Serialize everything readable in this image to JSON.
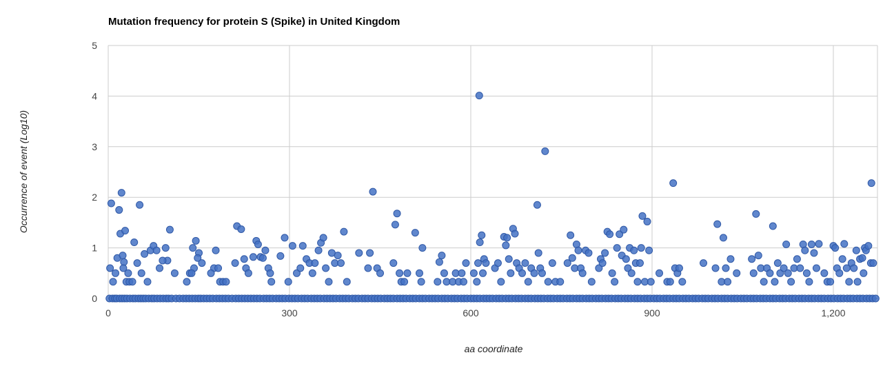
{
  "chart_data": {
    "type": "scatter",
    "title": "Mutation frequency for protein S (Spike) in United Kingdom",
    "xlabel": "aa coordinate",
    "ylabel": "Occurrence of event (Log10)",
    "xlim": [
      0,
      1273
    ],
    "ylim": [
      0,
      5
    ],
    "x_ticks": [
      "0",
      "300",
      "600",
      "900",
      "1,200"
    ],
    "y_ticks": [
      "0",
      "1",
      "2",
      "3",
      "4",
      "5"
    ],
    "grid": true,
    "legend": "none",
    "color": "#4472c4",
    "points": [
      [
        5,
        1.88
      ],
      [
        22,
        2.09
      ],
      [
        18,
        1.75
      ],
      [
        52,
        1.85
      ],
      [
        20,
        1.28
      ],
      [
        28,
        1.34
      ],
      [
        43,
        1.11
      ],
      [
        15,
        0.8
      ],
      [
        24,
        0.85
      ],
      [
        26,
        0.72
      ],
      [
        25,
        0.6
      ],
      [
        60,
        0.88
      ],
      [
        70,
        0.95
      ],
      [
        75,
        1.04
      ],
      [
        80,
        0.95
      ],
      [
        95,
        1.0
      ],
      [
        102,
        1.36
      ],
      [
        98,
        0.75
      ],
      [
        90,
        0.75
      ],
      [
        85,
        0.6
      ],
      [
        48,
        0.7
      ],
      [
        55,
        0.5
      ],
      [
        65,
        0.33
      ],
      [
        12,
        0.5
      ],
      [
        30,
        0.33
      ],
      [
        35,
        0.33
      ],
      [
        40,
        0.33
      ],
      [
        8,
        0.33
      ],
      [
        3,
        0.6
      ],
      [
        33,
        0.5
      ],
      [
        110,
        0.5
      ],
      [
        130,
        0.33
      ],
      [
        135,
        0.5
      ],
      [
        140,
        1.0
      ],
      [
        145,
        1.14
      ],
      [
        150,
        0.9
      ],
      [
        148,
        0.8
      ],
      [
        155,
        0.7
      ],
      [
        142,
        0.6
      ],
      [
        138,
        0.5
      ],
      [
        175,
        0.6
      ],
      [
        178,
        0.95
      ],
      [
        182,
        0.6
      ],
      [
        170,
        0.5
      ],
      [
        185,
        0.33
      ],
      [
        190,
        0.33
      ],
      [
        195,
        0.33
      ],
      [
        210,
        0.7
      ],
      [
        213,
        1.43
      ],
      [
        220,
        1.37
      ],
      [
        225,
        0.78
      ],
      [
        228,
        0.6
      ],
      [
        232,
        0.5
      ],
      [
        240,
        0.82
      ],
      [
        245,
        1.14
      ],
      [
        248,
        1.07
      ],
      [
        252,
        0.82
      ],
      [
        256,
        0.8
      ],
      [
        260,
        0.95
      ],
      [
        265,
        0.6
      ],
      [
        268,
        0.5
      ],
      [
        270,
        0.33
      ],
      [
        285,
        0.84
      ],
      [
        292,
        1.2
      ],
      [
        298,
        0.33
      ],
      [
        305,
        1.04
      ],
      [
        312,
        0.5
      ],
      [
        318,
        0.6
      ],
      [
        322,
        1.04
      ],
      [
        328,
        0.78
      ],
      [
        333,
        0.7
      ],
      [
        338,
        0.5
      ],
      [
        342,
        0.7
      ],
      [
        348,
        0.95
      ],
      [
        352,
        1.1
      ],
      [
        356,
        1.2
      ],
      [
        360,
        0.6
      ],
      [
        365,
        0.33
      ],
      [
        370,
        0.9
      ],
      [
        375,
        0.7
      ],
      [
        380,
        0.85
      ],
      [
        385,
        0.7
      ],
      [
        390,
        1.32
      ],
      [
        395,
        0.33
      ],
      [
        415,
        0.9
      ],
      [
        430,
        0.6
      ],
      [
        433,
        0.9
      ],
      [
        438,
        2.11
      ],
      [
        445,
        0.6
      ],
      [
        450,
        0.5
      ],
      [
        472,
        0.7
      ],
      [
        475,
        1.46
      ],
      [
        478,
        1.68
      ],
      [
        482,
        0.5
      ],
      [
        485,
        0.33
      ],
      [
        490,
        0.33
      ],
      [
        495,
        0.5
      ],
      [
        508,
        1.3
      ],
      [
        515,
        0.5
      ],
      [
        520,
        1.0
      ],
      [
        518,
        0.33
      ],
      [
        545,
        0.33
      ],
      [
        548,
        0.72
      ],
      [
        552,
        0.85
      ],
      [
        556,
        0.5
      ],
      [
        560,
        0.33
      ],
      [
        570,
        0.33
      ],
      [
        575,
        0.5
      ],
      [
        580,
        0.33
      ],
      [
        585,
        0.5
      ],
      [
        588,
        0.33
      ],
      [
        592,
        0.7
      ],
      [
        605,
        0.5
      ],
      [
        610,
        0.33
      ],
      [
        614,
        4.01
      ],
      [
        615,
        1.11
      ],
      [
        618,
        1.25
      ],
      [
        622,
        0.78
      ],
      [
        625,
        0.7
      ],
      [
        620,
        0.5
      ],
      [
        612,
        0.7
      ],
      [
        640,
        0.6
      ],
      [
        645,
        0.7
      ],
      [
        650,
        0.33
      ],
      [
        655,
        1.22
      ],
      [
        658,
        1.05
      ],
      [
        660,
        1.2
      ],
      [
        663,
        0.78
      ],
      [
        666,
        0.5
      ],
      [
        670,
        1.38
      ],
      [
        673,
        1.28
      ],
      [
        676,
        0.7
      ],
      [
        680,
        0.6
      ],
      [
        685,
        0.5
      ],
      [
        690,
        0.7
      ],
      [
        695,
        0.33
      ],
      [
        700,
        0.6
      ],
      [
        705,
        0.5
      ],
      [
        710,
        1.85
      ],
      [
        712,
        0.9
      ],
      [
        715,
        0.6
      ],
      [
        718,
        0.5
      ],
      [
        723,
        2.91
      ],
      [
        728,
        0.33
      ],
      [
        735,
        0.7
      ],
      [
        740,
        0.33
      ],
      [
        748,
        0.33
      ],
      [
        760,
        0.7
      ],
      [
        765,
        1.25
      ],
      [
        768,
        0.8
      ],
      [
        772,
        0.6
      ],
      [
        775,
        1.07
      ],
      [
        778,
        0.95
      ],
      [
        782,
        0.6
      ],
      [
        785,
        0.5
      ],
      [
        790,
        0.95
      ],
      [
        795,
        0.9
      ],
      [
        800,
        0.33
      ],
      [
        812,
        0.6
      ],
      [
        815,
        0.78
      ],
      [
        818,
        0.7
      ],
      [
        822,
        0.9
      ],
      [
        826,
        1.32
      ],
      [
        830,
        1.27
      ],
      [
        834,
        0.5
      ],
      [
        838,
        0.33
      ],
      [
        842,
        1.0
      ],
      [
        846,
        1.27
      ],
      [
        850,
        0.85
      ],
      [
        853,
        1.36
      ],
      [
        857,
        0.78
      ],
      [
        860,
        0.6
      ],
      [
        863,
        1.0
      ],
      [
        866,
        0.5
      ],
      [
        870,
        0.95
      ],
      [
        873,
        0.7
      ],
      [
        876,
        0.33
      ],
      [
        880,
        0.7
      ],
      [
        882,
        1.0
      ],
      [
        884,
        1.63
      ],
      [
        888,
        0.33
      ],
      [
        892,
        1.52
      ],
      [
        895,
        0.95
      ],
      [
        898,
        0.33
      ],
      [
        912,
        0.5
      ],
      [
        925,
        0.33
      ],
      [
        930,
        0.33
      ],
      [
        935,
        2.28
      ],
      [
        938,
        0.6
      ],
      [
        942,
        0.5
      ],
      [
        945,
        0.6
      ],
      [
        950,
        0.33
      ],
      [
        985,
        0.7
      ],
      [
        1005,
        0.6
      ],
      [
        1008,
        1.47
      ],
      [
        1015,
        0.33
      ],
      [
        1018,
        1.2
      ],
      [
        1022,
        0.6
      ],
      [
        1025,
        0.33
      ],
      [
        1030,
        0.78
      ],
      [
        1040,
        0.5
      ],
      [
        1065,
        0.78
      ],
      [
        1068,
        0.5
      ],
      [
        1072,
        1.67
      ],
      [
        1076,
        0.85
      ],
      [
        1080,
        0.6
      ],
      [
        1085,
        0.33
      ],
      [
        1090,
        0.6
      ],
      [
        1095,
        0.5
      ],
      [
        1100,
        1.43
      ],
      [
        1103,
        0.33
      ],
      [
        1108,
        0.7
      ],
      [
        1112,
        0.5
      ],
      [
        1118,
        0.6
      ],
      [
        1122,
        1.07
      ],
      [
        1125,
        0.5
      ],
      [
        1130,
        0.33
      ],
      [
        1135,
        0.6
      ],
      [
        1140,
        0.78
      ],
      [
        1145,
        0.6
      ],
      [
        1150,
        1.07
      ],
      [
        1153,
        0.95
      ],
      [
        1156,
        0.5
      ],
      [
        1160,
        0.33
      ],
      [
        1164,
        1.07
      ],
      [
        1168,
        0.9
      ],
      [
        1172,
        0.6
      ],
      [
        1176,
        1.08
      ],
      [
        1185,
        0.5
      ],
      [
        1190,
        0.33
      ],
      [
        1195,
        0.33
      ],
      [
        1200,
        1.04
      ],
      [
        1203,
        1.0
      ],
      [
        1206,
        0.6
      ],
      [
        1210,
        0.5
      ],
      [
        1215,
        0.78
      ],
      [
        1218,
        1.08
      ],
      [
        1222,
        0.6
      ],
      [
        1226,
        0.33
      ],
      [
        1230,
        0.7
      ],
      [
        1234,
        0.6
      ],
      [
        1238,
        0.95
      ],
      [
        1240,
        0.33
      ],
      [
        1244,
        0.78
      ],
      [
        1248,
        0.8
      ],
      [
        1250,
        0.5
      ],
      [
        1252,
        1.0
      ],
      [
        1254,
        0.95
      ],
      [
        1258,
        1.04
      ],
      [
        1262,
        0.7
      ],
      [
        1263,
        2.28
      ],
      [
        1266,
        0.7
      ]
    ],
    "zero_baseline_x": [
      2,
      7,
      11,
      14,
      19,
      23,
      27,
      31,
      36,
      41,
      45,
      50,
      54,
      58,
      62,
      67,
      72,
      76,
      81,
      86,
      91,
      96,
      100,
      105,
      112,
      118,
      124,
      129,
      134,
      139,
      144,
      149,
      153,
      158,
      163,
      168,
      173,
      179,
      184,
      189,
      194,
      199,
      205,
      211,
      216,
      221,
      226,
      231,
      236,
      241,
      246,
      251,
      257,
      262,
      267,
      272,
      278,
      283,
      288,
      293,
      299,
      304,
      309,
      314,
      320,
      325,
      330,
      336,
      341,
      346,
      351,
      357,
      362,
      367,
      372,
      377,
      383,
      388,
      393,
      398,
      404,
      409,
      414,
      420,
      425,
      430,
      436,
      441,
      446,
      451,
      457,
      462,
      467,
      472,
      478,
      483,
      488,
      493,
      499,
      504,
      509,
      515,
      520,
      525,
      531,
      536,
      541,
      546,
      552,
      557,
      562,
      568,
      573,
      578,
      584,
      589,
      594,
      600,
      605,
      610,
      615,
      621,
      626,
      631,
      636,
      642,
      647,
      652,
      658,
      663,
      668,
      674,
      679,
      684,
      690,
      695,
      700,
      706,
      711,
      716,
      721,
      727,
      732,
      737,
      743,
      748,
      753,
      759,
      764,
      769,
      775,
      780,
      785,
      791,
      796,
      801,
      807,
      812,
      817,
      823,
      828,
      833,
      839,
      844,
      849,
      855,
      860,
      865,
      871,
      876,
      881,
      887,
      892,
      897,
      903,
      908,
      913,
      919,
      924,
      929,
      935,
      940,
      945,
      951,
      956,
      961,
      967,
      972,
      977,
      983,
      988,
      993,
      999,
      1004,
      1009,
      1015,
      1020,
      1025,
      1031,
      1036,
      1041,
      1047,
      1052,
      1057,
      1063,
      1068,
      1073,
      1079,
      1084,
      1089,
      1095,
      1100,
      1105,
      1111,
      1116,
      1121,
      1127,
      1132,
      1137,
      1143,
      1148,
      1153,
      1159,
      1164,
      1169,
      1175,
      1180,
      1185,
      1191,
      1196,
      1201,
      1207,
      1212,
      1217,
      1223,
      1228,
      1233,
      1239,
      1244,
      1249,
      1255,
      1260,
      1265,
      1270
    ]
  }
}
